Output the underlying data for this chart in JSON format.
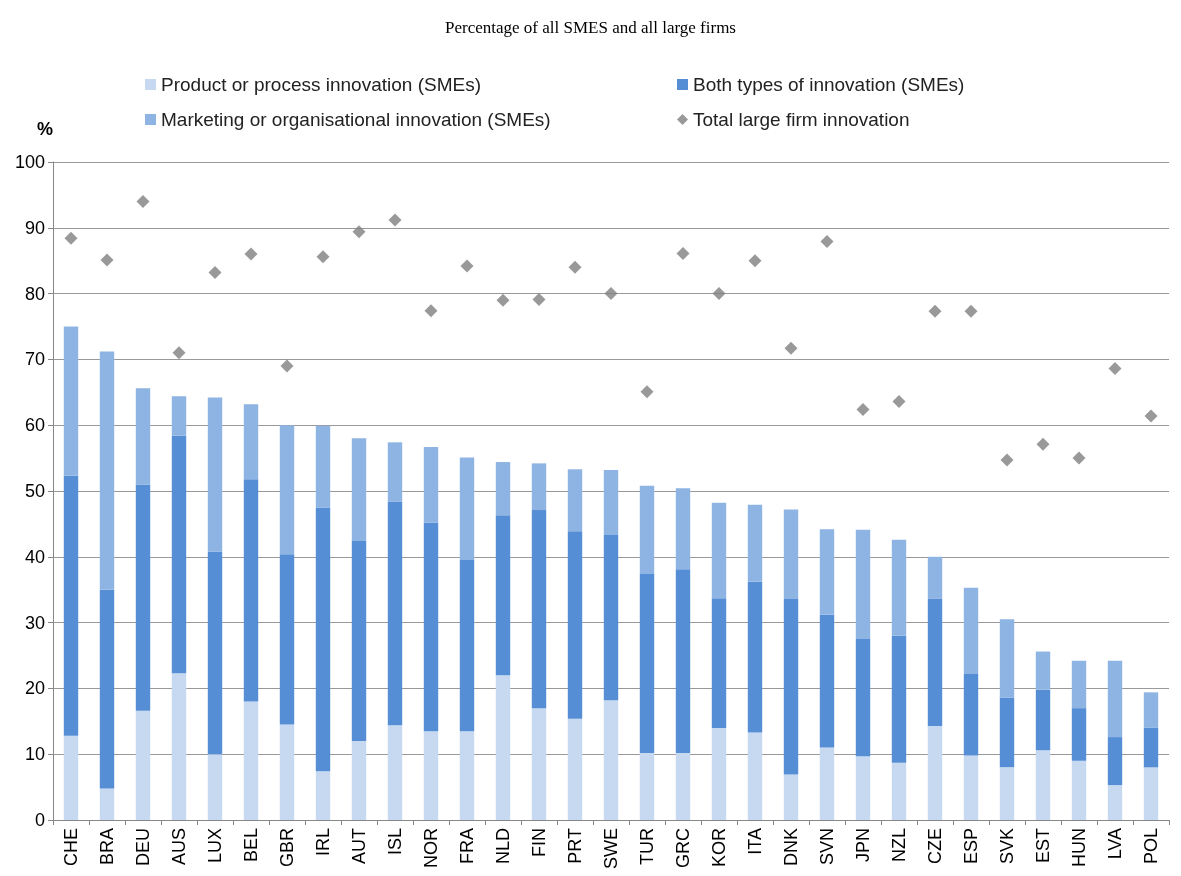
{
  "chart_data": {
    "type": "bar",
    "stacked": true,
    "title": "Percentage of all SMES and all large firms",
    "ylabel": "%",
    "categories": [
      "CHE",
      "BRA",
      "DEU",
      "AUS",
      "LUX",
      "BEL",
      "GBR",
      "IRL",
      "AUT",
      "ISL",
      "NOR",
      "FRA",
      "NLD",
      "FIN",
      "PRT",
      "SWE",
      "TUR",
      "GRC",
      "KOR",
      "ITA",
      "DNK",
      "SVN",
      "JPN",
      "NZL",
      "CZE",
      "ESP",
      "SVK",
      "EST",
      "HUN",
      "LVA",
      "POL"
    ],
    "series": [
      {
        "name": "Product or process innovation (SMEs)",
        "color": "#c6d9f0",
        "values": [
          12.8,
          4.8,
          16.6,
          22.3,
          10,
          18,
          14.5,
          7.4,
          12,
          14.4,
          13.5,
          13.5,
          22,
          17,
          15.4,
          18.2,
          10.2,
          10.2,
          14,
          13.3,
          6.9,
          11,
          9.7,
          8.7,
          14.3,
          9.8,
          8,
          10.6,
          9,
          5.3,
          8
        ]
      },
      {
        "name": "Both types of innovation (SMEs)",
        "color": "#558ed5",
        "values": [
          39.5,
          30.2,
          34.4,
          36.1,
          30.8,
          33.8,
          25.9,
          40.1,
          30.4,
          34,
          31.7,
          26,
          24.3,
          30.1,
          28.5,
          25.1,
          27.2,
          27.9,
          19.7,
          22.9,
          26.7,
          20.2,
          17.8,
          19.3,
          19.3,
          12.4,
          10.6,
          9.2,
          8,
          7.3,
          6
        ]
      },
      {
        "name": "Marketing or organisational innovation (SMEs)",
        "color": "#8eb4e3",
        "values": [
          22.7,
          36.2,
          14.6,
          6,
          23.4,
          11.4,
          19.6,
          12.4,
          15.6,
          9,
          11.5,
          15.6,
          8.1,
          7.1,
          9.4,
          9.9,
          13.4,
          12.3,
          14.5,
          11.7,
          13.6,
          13,
          16.6,
          14.6,
          6.4,
          13.1,
          11.9,
          5.8,
          7.2,
          11.6,
          5.4
        ]
      },
      {
        "name": "Total large firm innovation",
        "type": "scatter",
        "marker": "diamond",
        "color": "#808080",
        "values": [
          88.4,
          85.1,
          94,
          71,
          83.2,
          86,
          69,
          85.6,
          89.4,
          91.2,
          77.4,
          84.2,
          79,
          79.1,
          84,
          80,
          65.1,
          86.1,
          80,
          85,
          71.7,
          87.9,
          62.4,
          63.6,
          77.3,
          77.3,
          54.7,
          57.1,
          55,
          68.6,
          61.4
        ]
      }
    ],
    "ylim": [
      0,
      100
    ],
    "yticks": [
      0,
      10,
      20,
      30,
      40,
      50,
      60,
      70,
      80,
      90,
      100
    ],
    "grid": "y",
    "legend": "top"
  }
}
